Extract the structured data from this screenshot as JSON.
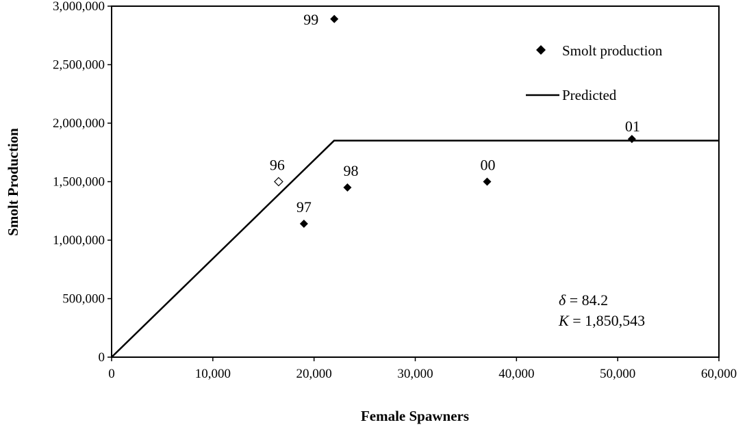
{
  "chart_data": {
    "type": "scatter",
    "xlabel": "Female Spawners",
    "ylabel": "Smolt Production",
    "xlim": [
      0,
      60000
    ],
    "ylim": [
      0,
      3000000
    ],
    "x_ticks": [
      0,
      10000,
      20000,
      30000,
      40000,
      50000,
      60000
    ],
    "x_tick_labels": [
      "0",
      "10,000",
      "20,000",
      "30,000",
      "40,000",
      "50,000",
      "60,000"
    ],
    "y_ticks": [
      0,
      500000,
      1000000,
      1500000,
      2000000,
      2500000,
      3000000
    ],
    "y_tick_labels": [
      "0",
      "500,000",
      "1,000,000",
      "1,500,000",
      "2,000,000",
      "2,500,000",
      "3,000,000"
    ],
    "grid": false,
    "legend_position": "top-right",
    "series": [
      {
        "name": "Smolt production",
        "kind": "scatter",
        "marker": "diamond",
        "points": [
          {
            "label": "96",
            "x": 16500,
            "y": 1500000,
            "filled": false
          },
          {
            "label": "97",
            "x": 19000,
            "y": 1140000,
            "filled": true
          },
          {
            "label": "98",
            "x": 23300,
            "y": 1450000,
            "filled": true
          },
          {
            "label": "99",
            "x": 22000,
            "y": 2890000,
            "filled": true
          },
          {
            "label": "00",
            "x": 37100,
            "y": 1500000,
            "filled": true
          },
          {
            "label": "01",
            "x": 51400,
            "y": 1865000,
            "filled": true
          }
        ]
      },
      {
        "name": "Predicted",
        "kind": "line",
        "points": [
          {
            "x": 0,
            "y": 0
          },
          {
            "x": 21978,
            "y": 1850543
          },
          {
            "x": 60000,
            "y": 1850543
          }
        ]
      }
    ],
    "annotations": {
      "delta_symbol": "δ",
      "delta_text": " = 84.2",
      "k_symbol": "K",
      "k_text": " = 1,850,543"
    },
    "colors": {
      "marker": "#000000",
      "line": "#000000"
    }
  }
}
